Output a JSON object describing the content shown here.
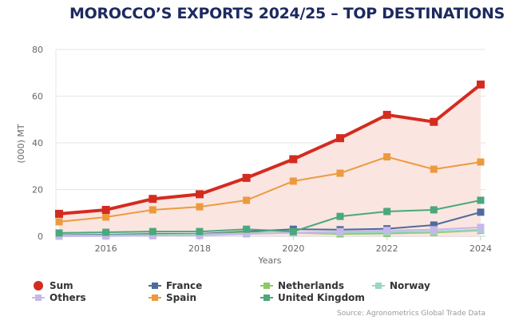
{
  "chart_data": {
    "type": "line",
    "title": "MOROCCO’S EXPORTS 2024/25 – TOP DESTINATIONS",
    "xlabel": "Years",
    "ylabel": "(000) MT",
    "x": [
      2015,
      2016,
      2017,
      2018,
      2019,
      2020,
      2021,
      2022,
      2023,
      2024
    ],
    "xticks": [
      "2016",
      "2018",
      "2020",
      "2022",
      "2024"
    ],
    "yticks": [
      "0",
      "20",
      "40",
      "60",
      "80"
    ],
    "ylim": [
      0,
      80
    ],
    "legend_position": "bottom",
    "source": "Source: Agronometrics Global Trade Data",
    "series": [
      {
        "name": "Sum",
        "color": "#d42b20",
        "values": [
          9.6,
          11.3,
          16,
          18,
          25,
          33,
          42,
          52,
          49,
          65
        ]
      },
      {
        "name": "France",
        "color": "#4f6b9c",
        "values": [
          0.5,
          0.7,
          1,
          1,
          2,
          3,
          2.8,
          3.2,
          4.8,
          10.3
        ]
      },
      {
        "name": "Netherlands",
        "color": "#8cc866",
        "values": [
          0.3,
          0.4,
          0.6,
          0.8,
          1.5,
          1.5,
          1,
          1.2,
          1.6,
          2.5
        ]
      },
      {
        "name": "Norway",
        "color": "#9ad6c8",
        "values": [
          0.3,
          0.4,
          0.5,
          0.7,
          1.2,
          1.5,
          1.5,
          1.8,
          2,
          2.8
        ]
      },
      {
        "name": "Others",
        "color": "#c6b8ea",
        "values": [
          0,
          0.1,
          0.2,
          0.3,
          1,
          1.5,
          2,
          2.5,
          2.8,
          3.8
        ]
      },
      {
        "name": "Spain",
        "color": "#ec9a3e",
        "values": [
          6.2,
          8.2,
          11.3,
          12.6,
          15.4,
          23.6,
          27,
          34,
          28.7,
          31.8
        ]
      },
      {
        "name": "United Kingdom",
        "color": "#4aa87c",
        "values": [
          1.4,
          1.7,
          2,
          2,
          3,
          2,
          8.5,
          10.6,
          11.3,
          15.4
        ]
      }
    ]
  }
}
